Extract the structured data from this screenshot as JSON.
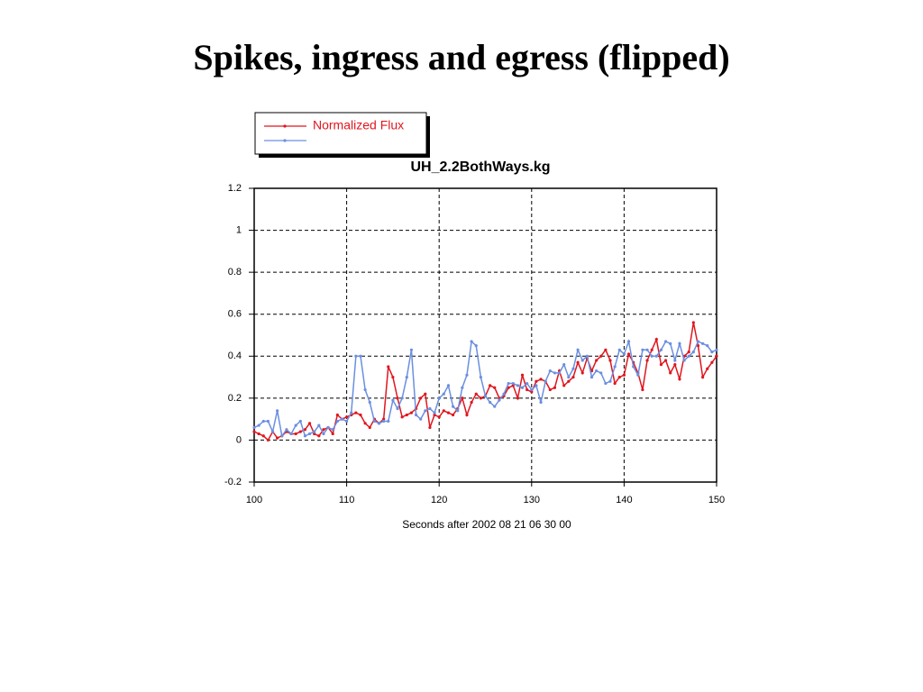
{
  "slide_title": "Spikes, ingress and egress (flipped)",
  "chart_data": {
    "type": "line",
    "title": "UH_2.2BothWays.kg",
    "xlabel": "Seconds after 2002 08 21 06 30 00",
    "x": [
      100,
      100.5,
      101,
      101.5,
      102,
      102.5,
      103,
      103.5,
      104,
      104.5,
      105,
      105.5,
      106,
      106.5,
      107,
      107.5,
      108,
      108.5,
      109,
      109.5,
      110,
      110.5,
      111,
      111.5,
      112,
      112.5,
      113,
      113.5,
      114,
      114.5,
      115,
      115.5,
      116,
      116.5,
      117,
      117.5,
      118,
      118.5,
      119,
      119.5,
      120,
      120.5,
      121,
      121.5,
      122,
      122.5,
      123,
      123.5,
      124,
      124.5,
      125,
      125.5,
      126,
      126.5,
      127,
      127.5,
      128,
      128.5,
      129,
      129.5,
      130,
      130.5,
      131,
      131.5,
      132,
      132.5,
      133,
      133.5,
      134,
      134.5,
      135,
      135.5,
      136,
      136.5,
      137,
      137.5,
      138,
      138.5,
      139,
      139.5,
      140,
      140.5,
      141,
      141.5,
      142,
      142.5,
      143,
      143.5,
      144,
      144.5,
      145,
      145.5,
      146,
      146.5,
      147,
      147.5,
      148,
      148.5,
      149,
      149.5,
      150
    ],
    "series": [
      {
        "name": "Normalized Flux",
        "color": "#e0161e",
        "values": [
          0.04,
          0.03,
          0.02,
          0.0,
          0.04,
          0.01,
          0.02,
          0.04,
          0.03,
          0.03,
          0.04,
          0.05,
          0.08,
          0.03,
          0.02,
          0.05,
          0.06,
          0.03,
          0.12,
          0.1,
          0.11,
          0.12,
          0.13,
          0.12,
          0.08,
          0.06,
          0.1,
          0.08,
          0.1,
          0.35,
          0.3,
          0.2,
          0.11,
          0.12,
          0.13,
          0.15,
          0.2,
          0.22,
          0.06,
          0.12,
          0.11,
          0.14,
          0.13,
          0.12,
          0.15,
          0.2,
          0.12,
          0.18,
          0.22,
          0.2,
          0.21,
          0.26,
          0.25,
          0.2,
          0.21,
          0.25,
          0.26,
          0.2,
          0.31,
          0.24,
          0.23,
          0.28,
          0.29,
          0.28,
          0.24,
          0.25,
          0.33,
          0.26,
          0.28,
          0.3,
          0.37,
          0.32,
          0.39,
          0.33,
          0.38,
          0.4,
          0.43,
          0.38,
          0.27,
          0.3,
          0.31,
          0.41,
          0.37,
          0.32,
          0.24,
          0.38,
          0.43,
          0.48,
          0.36,
          0.38,
          0.32,
          0.36,
          0.29,
          0.4,
          0.42,
          0.56,
          0.45,
          0.3,
          0.34,
          0.37,
          0.4
        ]
      },
      {
        "color": "#6b8fe0",
        "values": [
          0.06,
          0.07,
          0.09,
          0.09,
          0.04,
          0.14,
          0.02,
          0.05,
          0.03,
          0.07,
          0.09,
          0.02,
          0.03,
          0.04,
          0.07,
          0.03,
          0.06,
          0.05,
          0.09,
          0.1,
          0.09,
          0.13,
          0.4,
          0.4,
          0.24,
          0.18,
          0.09,
          0.08,
          0.09,
          0.09,
          0.19,
          0.15,
          0.2,
          0.3,
          0.43,
          0.12,
          0.1,
          0.14,
          0.15,
          0.13,
          0.2,
          0.22,
          0.26,
          0.16,
          0.14,
          0.25,
          0.31,
          0.47,
          0.45,
          0.3,
          0.21,
          0.18,
          0.16,
          0.19,
          0.22,
          0.27,
          0.27,
          0.26,
          0.25,
          0.27,
          0.24,
          0.26,
          0.18,
          0.28,
          0.33,
          0.32,
          0.32,
          0.36,
          0.3,
          0.34,
          0.43,
          0.38,
          0.4,
          0.3,
          0.33,
          0.32,
          0.27,
          0.28,
          0.35,
          0.43,
          0.41,
          0.47,
          0.35,
          0.31,
          0.43,
          0.43,
          0.4,
          0.4,
          0.43,
          0.47,
          0.46,
          0.38,
          0.46,
          0.38,
          0.4,
          0.42,
          0.47,
          0.46,
          0.45,
          0.42,
          0.43
        ]
      }
    ],
    "xlim": [
      100,
      150
    ],
    "xticks": [
      100,
      110,
      120,
      130,
      140,
      150
    ],
    "ylim": [
      -0.2,
      1.2
    ],
    "yticks": [
      -0.2,
      0,
      0.2,
      0.4,
      0.6,
      0.8,
      1,
      1.2
    ],
    "grid": true,
    "legend": "top-left"
  }
}
